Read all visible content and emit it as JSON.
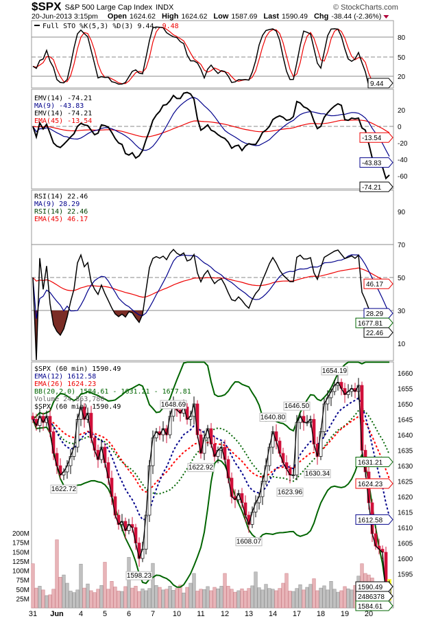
{
  "header": {
    "symbol": "$SPX",
    "name": "S&P 500 Large Cap Index",
    "exchange": "INDX",
    "copyright": "© StockCharts.com",
    "datetime": "20-Jun-2013 3:15pm",
    "open_label": "Open",
    "open": "1624.62",
    "high_label": "High",
    "high": "1624.62",
    "low_label": "Low",
    "low": "1587.69",
    "last_label": "Last",
    "last": "1590.49",
    "chg_label": "Chg",
    "chg": "-38.44 (-2.36%)"
  },
  "panels": {
    "sto": {
      "legend": "Full STO %K(5,3) %D(3) 9.44,",
      "legend_d": "9.48",
      "tag": "9.44",
      "ticks": [
        "80",
        "50",
        "20"
      ]
    },
    "emv": {
      "legend": [
        "EMV(14) -74.21",
        "MA(9) -43.83",
        "EMV(14) -74.21",
        "EMA(45) -13.54"
      ],
      "tags": [
        "-13.54",
        "-43.83",
        "-74.21"
      ],
      "ticks": [
        "20",
        "0",
        "-20",
        "-40",
        "-60"
      ]
    },
    "rsi": {
      "legend": [
        "RSI(14) 22.46",
        "MA(9) 28.29",
        "RSI(14) 22.46",
        "EMA(45) 46.17"
      ],
      "tags": [
        "46.17",
        "28.29",
        "1677.81",
        "22.46"
      ],
      "ticks": [
        "90",
        "70",
        "50",
        "30",
        "10"
      ]
    },
    "price": {
      "legend": [
        "$SPX (60 min) 1590.49",
        "EMA(12) 1612.58",
        "EMA(26) 1624.23",
        "BB(20,2.0) 1584.61 - 1631.21 - 1677.81",
        "Volume 24,863,780",
        "$SPX (60 min) 1590.49"
      ],
      "tags": [
        "1631.21",
        "1624.23",
        "1612.58",
        "1590.49",
        "2486378",
        "1584.61"
      ],
      "ticks": [
        "1660",
        "1655",
        "1650",
        "1645",
        "1640",
        "1635",
        "1630",
        "1625",
        "1620",
        "1615",
        "1610",
        "1605",
        "1600",
        "1595"
      ],
      "vol_ticks": [
        "200M",
        "175M",
        "150M",
        "125M",
        "100M",
        "75M",
        "50M",
        "25M"
      ]
    }
  },
  "colors": {
    "down": "#d0103a",
    "ema12": "#00008b",
    "ema26": "#ff0000",
    "bb": "#006400",
    "vol_down": "#e8b4b8",
    "vol_up": "#c0c0c0",
    "rsi_fill": "#7b2d26"
  },
  "chart_data": {
    "type": "line",
    "title": "$SPX S&P 500 Large Cap Index (60 min)",
    "x_labels": [
      "31",
      "Jun",
      "4",
      "5",
      "6",
      "7",
      "10",
      "11",
      "12",
      "13",
      "14",
      "17",
      "18",
      "19",
      "20"
    ],
    "bars_per_day": 7,
    "close": [
      1645,
      1643,
      1646,
      1644,
      1646,
      1641,
      1634,
      1630,
      1627,
      1628,
      1630,
      1633,
      1636,
      1645,
      1649,
      1645,
      1647,
      1639,
      1635,
      1632,
      1636,
      1631,
      1626,
      1620,
      1614,
      1611,
      1612,
      1609,
      1611,
      1610,
      1605,
      1600,
      1603,
      1614,
      1630,
      1639,
      1641,
      1640,
      1642,
      1640,
      1646,
      1650,
      1648,
      1647,
      1649,
      1645,
      1646,
      1650,
      1640,
      1634,
      1639,
      1642,
      1637,
      1633,
      1635,
      1636,
      1632,
      1626,
      1620,
      1619,
      1621,
      1618,
      1614,
      1611,
      1615,
      1618,
      1620,
      1625,
      1630,
      1636,
      1641,
      1638,
      1634,
      1631,
      1629,
      1627,
      1627,
      1644,
      1646,
      1644,
      1644,
      1645,
      1637,
      1633,
      1641,
      1650,
      1652,
      1654,
      1656,
      1657,
      1655,
      1653,
      1654,
      1655,
      1654,
      1656,
      1635,
      1628,
      1618,
      1608,
      1604,
      1603,
      1602,
      1588,
      1590.49
    ],
    "volume_m": [
      118,
      53,
      58,
      48,
      33,
      35,
      50,
      182,
      82,
      88,
      66,
      45,
      41,
      48,
      117,
      53,
      64,
      46,
      41,
      50,
      60,
      122,
      50,
      71,
      56,
      45,
      44,
      57,
      135,
      53,
      58,
      44,
      51,
      46,
      52,
      119,
      60,
      55,
      48,
      50,
      58,
      47,
      52,
      61,
      40,
      55,
      66,
      92,
      45,
      50,
      49,
      57,
      46,
      55,
      51,
      58,
      92,
      58,
      50,
      42,
      46,
      51,
      45,
      52,
      59,
      96,
      54,
      48,
      63,
      52,
      50,
      46,
      52,
      66,
      92,
      45,
      44,
      52,
      62,
      48,
      55,
      63,
      78,
      46,
      53,
      59,
      48,
      71,
      50,
      42,
      46,
      57,
      51,
      48,
      60,
      85,
      118,
      92,
      88,
      80,
      70,
      55,
      52,
      60,
      25
    ],
    "annotations": [
      {
        "bar": 9,
        "text": "1622.72",
        "pos": "below"
      },
      {
        "bar": 31,
        "text": "1598.23",
        "pos": "below"
      },
      {
        "bar": 41,
        "text": "1648.69",
        "pos": "above"
      },
      {
        "bar": 49,
        "text": "1622.92",
        "pos": "below"
      },
      {
        "bar": 63,
        "text": "1608.07",
        "pos": "below"
      },
      {
        "bar": 70,
        "text": "1640.80",
        "pos": "above"
      },
      {
        "bar": 75,
        "text": "1623.96",
        "pos": "below"
      },
      {
        "bar": 77,
        "text": "1646.50",
        "pos": "above"
      },
      {
        "bar": 83,
        "text": "1630.34",
        "pos": "below"
      },
      {
        "bar": 88,
        "text": "1654.19",
        "pos": "above"
      }
    ],
    "price_range": [
      1585,
      1663
    ],
    "sto_range": [
      0,
      100
    ],
    "emv_range": [
      -80,
      45
    ],
    "rsi_range": [
      0,
      100
    ]
  }
}
